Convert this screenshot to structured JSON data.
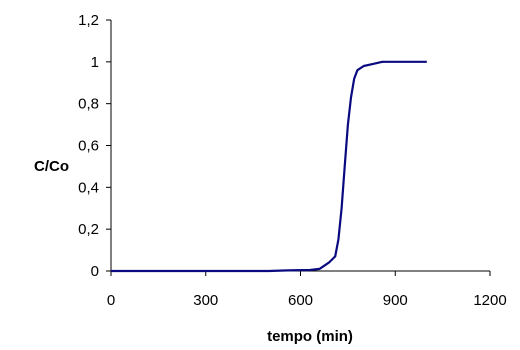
{
  "chart_data": {
    "type": "line",
    "title": "",
    "xlabel": "tempo (min)",
    "ylabel": "C/Co",
    "xlim": [
      0,
      1200
    ],
    "ylim": [
      0,
      1.2
    ],
    "x_ticks": [
      "0",
      "300",
      "600",
      "900",
      "1200"
    ],
    "y_ticks": [
      "0",
      "0,2",
      "0,4",
      "0,6",
      "0,8",
      "1",
      "1,2"
    ],
    "grid": false,
    "legend": "none",
    "series": [
      {
        "color": "#0a0a80",
        "points": [
          [
            0,
            0
          ],
          [
            100,
            0
          ],
          [
            200,
            0
          ],
          [
            300,
            0
          ],
          [
            400,
            0
          ],
          [
            500,
            0
          ],
          [
            560,
            0.003
          ],
          [
            630,
            0.005
          ],
          [
            660,
            0.01
          ],
          [
            690,
            0.04
          ],
          [
            710,
            0.07
          ],
          [
            720,
            0.15
          ],
          [
            730,
            0.3
          ],
          [
            740,
            0.5
          ],
          [
            750,
            0.7
          ],
          [
            760,
            0.83
          ],
          [
            770,
            0.92
          ],
          [
            780,
            0.96
          ],
          [
            800,
            0.98
          ],
          [
            830,
            0.99
          ],
          [
            860,
            1.0
          ],
          [
            900,
            1.0
          ],
          [
            950,
            1.0
          ],
          [
            1000,
            1.0
          ]
        ]
      }
    ]
  }
}
